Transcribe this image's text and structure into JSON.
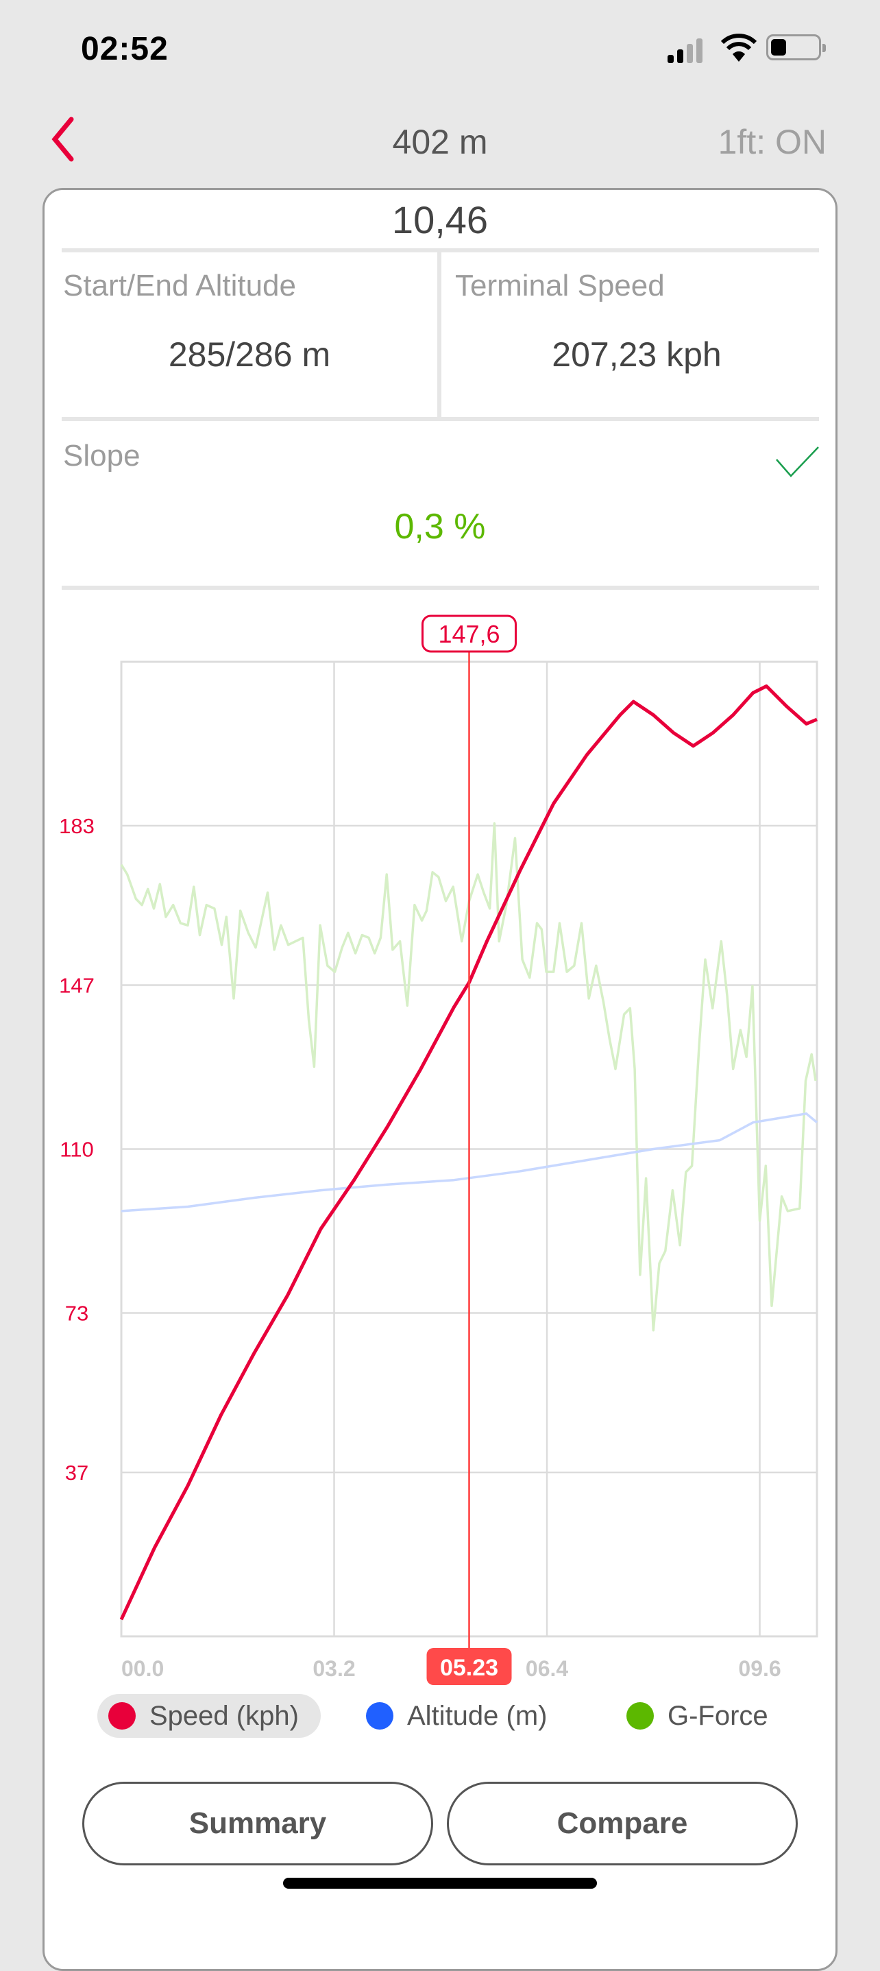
{
  "status": {
    "time": "02:52",
    "icons": [
      "cellular-signal-icon",
      "wifi-icon",
      "battery-icon"
    ]
  },
  "nav": {
    "back_icon": "chevron-left-icon",
    "title": "402 m",
    "right": "1ft: ON"
  },
  "summary": {
    "duration": "10,46",
    "altitude_label": "Start/End Altitude",
    "altitude_value": "285/286 m",
    "speed_label": "Terminal Speed",
    "speed_value": "207,23 kph",
    "slope_label": "Slope",
    "slope_value": "0,3 %",
    "slope_icon": "checkmark-icon"
  },
  "colors": {
    "accent": "#e8003a",
    "speed": "#e8003a",
    "altitude": "#c8d8ff",
    "gforce": "#d6efc6",
    "ok": "#5cb800",
    "badge": "#ff4a4a"
  },
  "chart_data": {
    "type": "line",
    "xlim": [
      0,
      10.46
    ],
    "ylim": [
      0,
      220
    ],
    "grid": true,
    "y_ticks": [
      37,
      73,
      110,
      147,
      183
    ],
    "x_ticks": [
      "00.0",
      "03.2",
      "06.4",
      "09.6"
    ],
    "x_tick_values": [
      0,
      3.2,
      6.4,
      9.6
    ],
    "cursor": {
      "x": 5.23,
      "x_label": "05.23",
      "value_label": "147,6"
    },
    "legend": [
      {
        "name": "Speed (kph)",
        "color": "#e8003a",
        "selected": true
      },
      {
        "name": "Altitude (m)",
        "color": "#2060ff"
      },
      {
        "name": "G-Force",
        "color": "#5cb800"
      }
    ],
    "series": [
      {
        "name": "Speed (kph)",
        "color": "#e8003a",
        "x": [
          0,
          0.5,
          1,
          1.5,
          2,
          2.5,
          3,
          3.5,
          4,
          4.5,
          5,
          5.23,
          5.5,
          6,
          6.5,
          7,
          7.5,
          7.7,
          8,
          8.3,
          8.6,
          8.9,
          9.2,
          9.5,
          9.7,
          10,
          10.3,
          10.46
        ],
        "y": [
          3.8,
          20,
          34,
          50,
          64,
          77,
          92,
          103,
          115,
          128,
          142,
          147.6,
          157,
          173,
          188,
          199,
          208,
          211,
          208,
          204,
          201,
          204,
          208,
          213,
          214.5,
          210,
          206,
          207
        ]
      },
      {
        "name": "Altitude (m)",
        "color": "#c8d8ff",
        "x": [
          0,
          1,
          2,
          3,
          4,
          5,
          6,
          7,
          8,
          9,
          9.5,
          10.3,
          10.46
        ],
        "y": [
          96,
          97,
          99,
          100.7,
          102,
          103,
          105,
          107.5,
          110,
          112,
          116,
          118,
          116
        ]
      },
      {
        "name": "G-Force",
        "color": "#d6efc6",
        "x": [
          0,
          0.09,
          0.22,
          0.31,
          0.4,
          0.49,
          0.58,
          0.67,
          0.78,
          0.89,
          1.0,
          1.09,
          1.18,
          1.28,
          1.4,
          1.51,
          1.58,
          1.69,
          1.79,
          1.91,
          2.02,
          2.2,
          2.3,
          2.4,
          2.51,
          2.62,
          2.73,
          2.82,
          2.9,
          2.99,
          3.1,
          3.21,
          3.32,
          3.41,
          3.52,
          3.62,
          3.72,
          3.81,
          3.9,
          3.99,
          4.08,
          4.19,
          4.3,
          4.41,
          4.52,
          4.59,
          4.68,
          4.77,
          4.88,
          4.99,
          5.12,
          5.23,
          5.36,
          5.45,
          5.54,
          5.61,
          5.68,
          5.79,
          5.92,
          6.03,
          6.14,
          6.25,
          6.32,
          6.39,
          6.5,
          6.59,
          6.7,
          6.81,
          6.92,
          7.03,
          7.14,
          7.25,
          7.34,
          7.43,
          7.56,
          7.65,
          7.72,
          7.8,
          7.89,
          8.0,
          8.09,
          8.18,
          8.29,
          8.4,
          8.49,
          8.58,
          8.69,
          8.78,
          8.89,
          9.02,
          9.11,
          9.2,
          9.31,
          9.4,
          9.49,
          9.6,
          9.69,
          9.78,
          9.93,
          10.02,
          10.2,
          10.29,
          10.38,
          10.44
        ],
        "y": [
          174.2,
          172.0,
          166.5,
          165.1,
          168.7,
          164.3,
          169.8,
          162.4,
          165.1,
          161.0,
          160.5,
          169.2,
          158.3,
          165.1,
          164.3,
          156.1,
          162.4,
          144.0,
          163.8,
          158.8,
          155.5,
          167.9,
          155.0,
          160.5,
          156.1,
          156.9,
          157.7,
          139.1,
          128.6,
          160.5,
          151.4,
          150.0,
          155.5,
          158.8,
          154.2,
          158.3,
          157.7,
          154.2,
          157.7,
          172.0,
          155.0,
          156.9,
          142.4,
          165.1,
          161.6,
          163.8,
          172.5,
          171.4,
          166.0,
          169.2,
          156.9,
          166.0,
          172.0,
          167.9,
          164.3,
          183.5,
          156.9,
          165.1,
          180.2,
          152.8,
          148.7,
          161.0,
          159.6,
          150.0,
          150.0,
          161.0,
          150.0,
          151.4,
          161.0,
          144.0,
          151.4,
          143.2,
          135.0,
          128.1,
          140.4,
          141.8,
          128.1,
          81.6,
          103.4,
          69.1,
          84.2,
          87.0,
          100.7,
          88.3,
          104.8,
          106.2,
          133.6,
          152.8,
          141.8,
          156.9,
          144.6,
          128.1,
          136.9,
          130.8,
          146.8,
          93.8,
          106.2,
          74.6,
          99.3,
          96.0,
          96.6,
          125.4,
          131.4,
          125.4
        ]
      }
    ]
  },
  "buttons": {
    "summary": "Summary",
    "compare": "Compare"
  }
}
